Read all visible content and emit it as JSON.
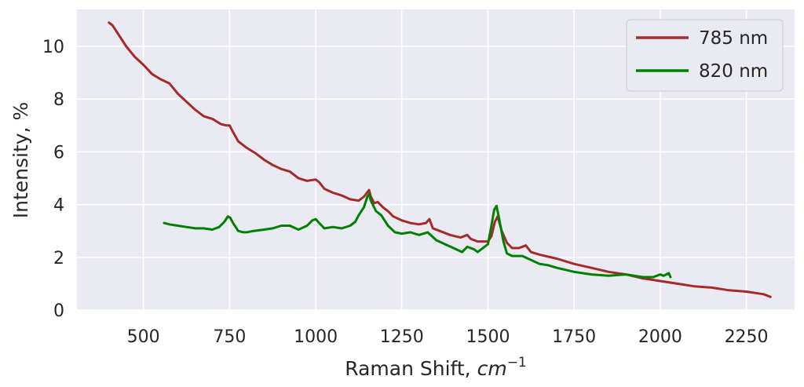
{
  "chart_data": {
    "type": "line",
    "title": "",
    "xlabel": "Raman Shift, ",
    "xlabel_math": "cm",
    "xlabel_exp": "−1",
    "ylabel": "Intensity, %",
    "xlim": [
      307,
      2390
    ],
    "ylim": [
      0,
      11.4
    ],
    "xticks": [
      500,
      750,
      1000,
      1250,
      1500,
      1750,
      2000,
      2250
    ],
    "xtick_labels": [
      "500",
      "750",
      "1000",
      "1250",
      "1500",
      "1750",
      "2000",
      "2250"
    ],
    "yticks": [
      0,
      2,
      4,
      6,
      8,
      10
    ],
    "ytick_labels": [
      "0",
      "2",
      "4",
      "6",
      "8",
      "10"
    ],
    "grid": true,
    "legend_position": "top-right",
    "colors": {
      "background": "#EAEAF2",
      "grid": "#FFFFFF",
      "s785": "#A52A2A",
      "s820": "#008000"
    },
    "series": [
      {
        "name": "785 nm",
        "color": "#A52A2A",
        "x": [
          400,
          410,
          425,
          450,
          475,
          500,
          525,
          550,
          575,
          600,
          625,
          650,
          675,
          700,
          725,
          740,
          750,
          760,
          775,
          800,
          825,
          850,
          875,
          900,
          925,
          950,
          975,
          1000,
          1010,
          1025,
          1050,
          1075,
          1100,
          1125,
          1140,
          1155,
          1160,
          1170,
          1180,
          1195,
          1210,
          1225,
          1250,
          1275,
          1300,
          1320,
          1330,
          1340,
          1360,
          1390,
          1420,
          1440,
          1450,
          1470,
          1500,
          1510,
          1520,
          1528,
          1540,
          1555,
          1570,
          1590,
          1610,
          1625,
          1650,
          1700,
          1750,
          1800,
          1850,
          1900,
          1950,
          2000,
          2050,
          2100,
          2150,
          2200,
          2250,
          2300,
          2320
        ],
        "values": [
          10.9,
          10.8,
          10.5,
          10.0,
          9.6,
          9.3,
          8.95,
          8.75,
          8.6,
          8.2,
          7.9,
          7.6,
          7.35,
          7.25,
          7.05,
          7.0,
          7.0,
          6.75,
          6.4,
          6.15,
          5.95,
          5.7,
          5.5,
          5.35,
          5.25,
          5.0,
          4.9,
          4.95,
          4.85,
          4.6,
          4.45,
          4.35,
          4.2,
          4.15,
          4.3,
          4.55,
          4.3,
          4.05,
          4.1,
          3.9,
          3.75,
          3.55,
          3.4,
          3.3,
          3.25,
          3.3,
          3.45,
          3.1,
          3.0,
          2.85,
          2.75,
          2.85,
          2.7,
          2.6,
          2.6,
          2.8,
          3.35,
          3.55,
          3.0,
          2.55,
          2.35,
          2.35,
          2.45,
          2.2,
          2.1,
          1.95,
          1.75,
          1.6,
          1.45,
          1.35,
          1.2,
          1.1,
          1.0,
          0.9,
          0.85,
          0.75,
          0.7,
          0.6,
          0.5
        ]
      },
      {
        "name": "820 nm",
        "color": "#008000",
        "x": [
          560,
          575,
          600,
          625,
          650,
          675,
          700,
          720,
          735,
          745,
          752,
          760,
          775,
          790,
          800,
          820,
          850,
          875,
          900,
          925,
          950,
          975,
          990,
          1000,
          1010,
          1025,
          1050,
          1075,
          1100,
          1115,
          1125,
          1140,
          1150,
          1155,
          1160,
          1175,
          1190,
          1210,
          1230,
          1250,
          1275,
          1300,
          1325,
          1350,
          1375,
          1400,
          1425,
          1440,
          1460,
          1470,
          1490,
          1500,
          1510,
          1518,
          1525,
          1532,
          1545,
          1555,
          1570,
          1600,
          1625,
          1650,
          1675,
          1700,
          1750,
          1800,
          1850,
          1900,
          1950,
          1980,
          2000,
          2010,
          2025,
          2030
        ],
        "values": [
          3.3,
          3.25,
          3.2,
          3.15,
          3.1,
          3.1,
          3.05,
          3.15,
          3.35,
          3.55,
          3.5,
          3.3,
          3.0,
          2.95,
          2.95,
          3.0,
          3.05,
          3.1,
          3.2,
          3.2,
          3.05,
          3.2,
          3.4,
          3.45,
          3.3,
          3.1,
          3.15,
          3.1,
          3.2,
          3.35,
          3.6,
          3.9,
          4.3,
          4.4,
          4.15,
          3.75,
          3.6,
          3.2,
          2.95,
          2.9,
          2.95,
          2.85,
          2.95,
          2.65,
          2.5,
          2.35,
          2.2,
          2.4,
          2.3,
          2.2,
          2.4,
          2.5,
          3.2,
          3.8,
          3.95,
          3.5,
          2.6,
          2.15,
          2.05,
          2.05,
          1.9,
          1.75,
          1.7,
          1.6,
          1.45,
          1.35,
          1.3,
          1.35,
          1.25,
          1.25,
          1.35,
          1.3,
          1.4,
          1.25
        ]
      }
    ]
  }
}
